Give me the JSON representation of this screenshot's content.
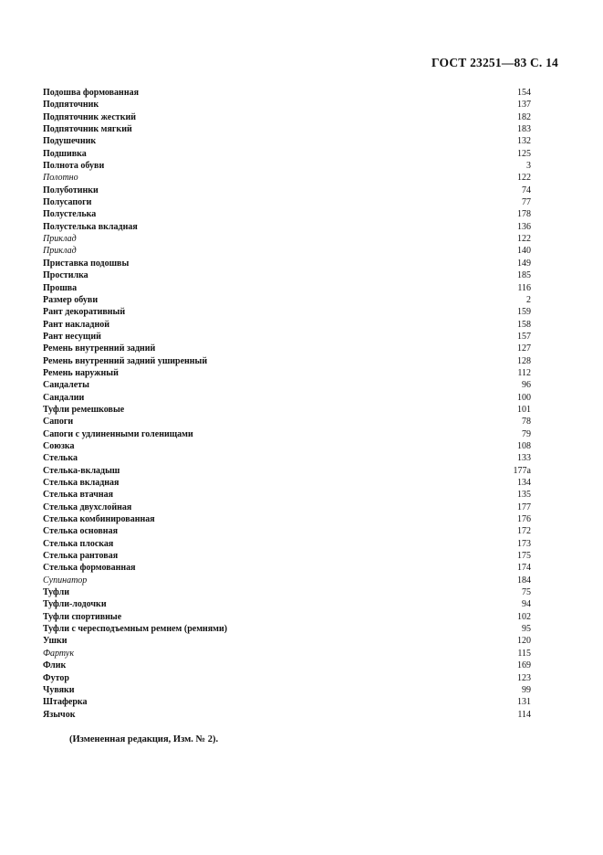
{
  "header": "ГОСТ 23251—83 С. 14",
  "entries": [
    {
      "term": "Подошва формованная",
      "page": "154",
      "italic": false
    },
    {
      "term": "Подпяточник",
      "page": "137",
      "italic": false
    },
    {
      "term": "Подпяточник жесткий",
      "page": "182",
      "italic": false
    },
    {
      "term": "Подпяточник мягкий",
      "page": "183",
      "italic": false
    },
    {
      "term": "Подушечник",
      "page": "132",
      "italic": false
    },
    {
      "term": "Подшивка",
      "page": "125",
      "italic": false
    },
    {
      "term": "Полнота обуви",
      "page": "3",
      "italic": false
    },
    {
      "term": "Полотно",
      "page": "122",
      "italic": true
    },
    {
      "term": "Полуботинки",
      "page": "74",
      "italic": false
    },
    {
      "term": "Полусапоги",
      "page": "77",
      "italic": false
    },
    {
      "term": "Полустелька",
      "page": "178",
      "italic": false
    },
    {
      "term": "Полустелька вкладная",
      "page": "136",
      "italic": false
    },
    {
      "term": "Приклад",
      "page": "122",
      "italic": true
    },
    {
      "term": "Приклад",
      "page": "140",
      "italic": true
    },
    {
      "term": "Приставка подошвы",
      "page": "149",
      "italic": false
    },
    {
      "term": "Простилка",
      "page": "185",
      "italic": false
    },
    {
      "term": "Прошва",
      "page": "116",
      "italic": false
    },
    {
      "term": "Размер обуви",
      "page": "2",
      "italic": false
    },
    {
      "term": "Рант декоративный",
      "page": "159",
      "italic": false
    },
    {
      "term": "Рант накладной",
      "page": "158",
      "italic": false
    },
    {
      "term": "Рант несущий",
      "page": "157",
      "italic": false
    },
    {
      "term": "Ремень внутренний задний",
      "page": "127",
      "italic": false
    },
    {
      "term": "Ремень внутренний задний уширенный",
      "page": "128",
      "italic": false
    },
    {
      "term": "Ремень наружный",
      "page": "112",
      "italic": false
    },
    {
      "term": "Сандалеты",
      "page": "96",
      "italic": false
    },
    {
      "term": "Сандалии",
      "page": "100",
      "italic": false
    },
    {
      "term": "Туфли ремешковые",
      "page": "101",
      "italic": false
    },
    {
      "term": "Сапоги",
      "page": "78",
      "italic": false
    },
    {
      "term": "Сапоги с удлиненными голенищами",
      "page": "79",
      "italic": false
    },
    {
      "term": "Союзка",
      "page": "108",
      "italic": false
    },
    {
      "term": "Стелька",
      "page": "133",
      "italic": false
    },
    {
      "term": "Стелька-вкладыш",
      "page": "177а",
      "italic": false
    },
    {
      "term": "Стелька вкладная",
      "page": "134",
      "italic": false
    },
    {
      "term": "Стелька втачная",
      "page": "135",
      "italic": false
    },
    {
      "term": "Стелька двухслойная",
      "page": "177",
      "italic": false
    },
    {
      "term": "Стелька комбинированная",
      "page": "176",
      "italic": false
    },
    {
      "term": "Стелька основная",
      "page": "172",
      "italic": false
    },
    {
      "term": "Стелька плоская",
      "page": "173",
      "italic": false
    },
    {
      "term": "Стелька рантовая",
      "page": "175",
      "italic": false
    },
    {
      "term": "Стелька формованная",
      "page": "174",
      "italic": false
    },
    {
      "term": "Супинатор",
      "page": "184",
      "italic": true
    },
    {
      "term": "Туфли",
      "page": "75",
      "italic": false
    },
    {
      "term": "Туфли-лодочки",
      "page": "94",
      "italic": false
    },
    {
      "term": "Туфли спортивные",
      "page": "102",
      "italic": false
    },
    {
      "term": "Туфли с чересподъемным ремнем (ремнями)",
      "page": "95",
      "italic": false
    },
    {
      "term": "Ушки",
      "page": "120",
      "italic": false
    },
    {
      "term": "Фартук",
      "page": "115",
      "italic": true
    },
    {
      "term": "Флик",
      "page": "169",
      "italic": false
    },
    {
      "term": "Футор",
      "page": "123",
      "italic": false
    },
    {
      "term": "Чувяки",
      "page": "99",
      "italic": false
    },
    {
      "term": "Штаферка",
      "page": "131",
      "italic": false
    },
    {
      "term": "Язычок",
      "page": "114",
      "italic": false
    }
  ],
  "note": "(Измененная редакция, Изм. № 2)."
}
